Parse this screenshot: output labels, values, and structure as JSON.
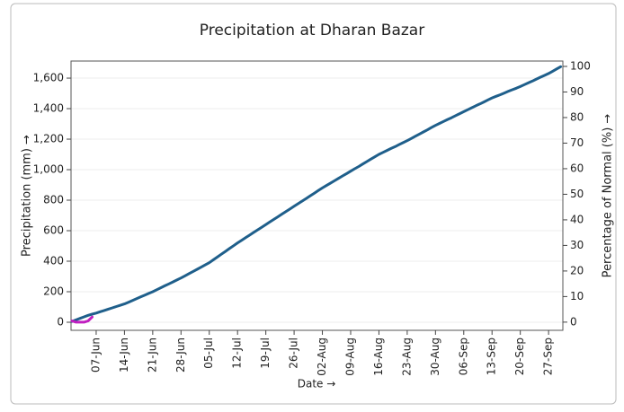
{
  "chart_data": {
    "type": "line",
    "title": "Precipitation at Dharan Bazar",
    "x_label": "Date →",
    "y_label": "Precipitation (mm) →",
    "y2_label": "Percentage of Normal (%) →",
    "x": [
      "01-Jun",
      "02-Jun",
      "03-Jun",
      "04-Jun",
      "05-Jun",
      "06-Jun",
      "07-Jun",
      "08-Jun",
      "09-Jun",
      "10-Jun",
      "11-Jun",
      "12-Jun",
      "13-Jun",
      "14-Jun",
      "15-Jun",
      "16-Jun",
      "17-Jun",
      "18-Jun",
      "19-Jun",
      "20-Jun",
      "21-Jun",
      "22-Jun",
      "23-Jun",
      "24-Jun",
      "25-Jun",
      "26-Jun",
      "27-Jun",
      "28-Jun",
      "29-Jun",
      "30-Jun",
      "01-Jul",
      "02-Jul",
      "03-Jul",
      "04-Jul",
      "05-Jul",
      "06-Jul",
      "07-Jul",
      "08-Jul",
      "09-Jul",
      "10-Jul",
      "11-Jul",
      "12-Jul",
      "13-Jul",
      "14-Jul",
      "15-Jul",
      "16-Jul",
      "17-Jul",
      "18-Jul",
      "19-Jul",
      "20-Jul",
      "21-Jul",
      "22-Jul",
      "23-Jul",
      "24-Jul",
      "25-Jul",
      "26-Jul",
      "27-Jul",
      "28-Jul",
      "29-Jul",
      "30-Jul",
      "31-Jul",
      "01-Aug",
      "02-Aug",
      "03-Aug",
      "04-Aug",
      "05-Aug",
      "06-Aug",
      "07-Aug",
      "08-Aug",
      "09-Aug",
      "10-Aug",
      "11-Aug",
      "12-Aug",
      "13-Aug",
      "14-Aug",
      "15-Aug",
      "16-Aug",
      "17-Aug",
      "18-Aug",
      "19-Aug",
      "20-Aug",
      "21-Aug",
      "22-Aug",
      "23-Aug",
      "24-Aug",
      "25-Aug",
      "26-Aug",
      "27-Aug",
      "28-Aug",
      "29-Aug",
      "30-Aug",
      "31-Aug",
      "01-Sep",
      "02-Sep",
      "03-Sep",
      "04-Sep",
      "05-Sep",
      "06-Sep",
      "07-Sep",
      "08-Sep",
      "09-Sep",
      "10-Sep",
      "11-Sep",
      "12-Sep",
      "13-Sep",
      "14-Sep",
      "15-Sep",
      "16-Sep",
      "17-Sep",
      "18-Sep",
      "19-Sep",
      "20-Sep",
      "21-Sep",
      "22-Sep",
      "23-Sep",
      "24-Sep",
      "25-Sep",
      "26-Sep",
      "27-Sep",
      "28-Sep",
      "29-Sep",
      "30-Sep"
    ],
    "xticks": [
      "07-Jun",
      "14-Jun",
      "21-Jun",
      "28-Jun",
      "05-Jul",
      "12-Jul",
      "19-Jul",
      "26-Jul",
      "02-Aug",
      "09-Aug",
      "16-Aug",
      "23-Aug",
      "30-Aug",
      "06-Sep",
      "13-Sep",
      "20-Sep",
      "27-Sep"
    ],
    "series": [
      {
        "color": "#1f5f8b",
        "values": [
          5,
          15,
          25,
          35,
          45,
          53,
          60,
          69,
          77,
          86,
          94,
          103,
          111,
          120,
          131,
          143,
          154,
          166,
          177,
          189,
          200,
          213,
          226,
          239,
          251,
          264,
          277,
          290,
          304,
          319,
          333,
          347,
          361,
          376,
          390,
          409,
          427,
          446,
          464,
          483,
          501,
          520,
          537,
          554,
          571,
          589,
          606,
          623,
          640,
          657,
          674,
          691,
          709,
          726,
          743,
          760,
          777,
          794,
          811,
          829,
          846,
          863,
          880,
          896,
          911,
          927,
          943,
          959,
          974,
          990,
          1006,
          1021,
          1037,
          1053,
          1069,
          1084,
          1100,
          1113,
          1126,
          1139,
          1151,
          1164,
          1177,
          1190,
          1204,
          1219,
          1233,
          1247,
          1261,
          1276,
          1290,
          1303,
          1316,
          1329,
          1341,
          1354,
          1367,
          1380,
          1393,
          1406,
          1419,
          1431,
          1444,
          1457,
          1470,
          1481,
          1491,
          1502,
          1513,
          1524,
          1534,
          1545,
          1557,
          1569,
          1581,
          1594,
          1606,
          1618,
          1630,
          1645,
          1660,
          1675
        ]
      },
      {
        "color": "#c020c0",
        "axis": "y2",
        "values": [
          0.5,
          0,
          0,
          0,
          0.5,
          2,
          null,
          null,
          null,
          null,
          null,
          null,
          null,
          null,
          null,
          null,
          null,
          null,
          null,
          null,
          null,
          null,
          null,
          null,
          null,
          null,
          null,
          null,
          null,
          null,
          null,
          null,
          null,
          null,
          null,
          null,
          null,
          null,
          null,
          null,
          null,
          null,
          null,
          null,
          null,
          null,
          null,
          null,
          null,
          null,
          null,
          null,
          null,
          null,
          null,
          null,
          null,
          null,
          null,
          null,
          null,
          null,
          null,
          null,
          null,
          null,
          null,
          null,
          null,
          null,
          null,
          null,
          null,
          null,
          null,
          null,
          null,
          null,
          null,
          null,
          null,
          null,
          null,
          null,
          null,
          null,
          null,
          null,
          null,
          null,
          null,
          null,
          null,
          null,
          null,
          null,
          null,
          null,
          null,
          null,
          null,
          null,
          null,
          null,
          null,
          null,
          null,
          null,
          null,
          null,
          null,
          null,
          null,
          null,
          null,
          null,
          null,
          null,
          null,
          null,
          null,
          null
        ]
      }
    ],
    "ylim": [
      -53,
      1712
    ],
    "yticks": [
      0,
      200,
      400,
      600,
      800,
      {
        "value": 1000,
        "label": "1,000"
      },
      {
        "value": 1200,
        "label": "1,200"
      },
      {
        "value": 1400,
        "label": "1,400"
      },
      {
        "value": 1600,
        "label": "1,600"
      }
    ],
    "y2lim": [
      -3.2,
      102.1
    ],
    "y2ticks": [
      0,
      10,
      20,
      30,
      40,
      50,
      60,
      70,
      80,
      90,
      100
    ],
    "grid": true
  }
}
